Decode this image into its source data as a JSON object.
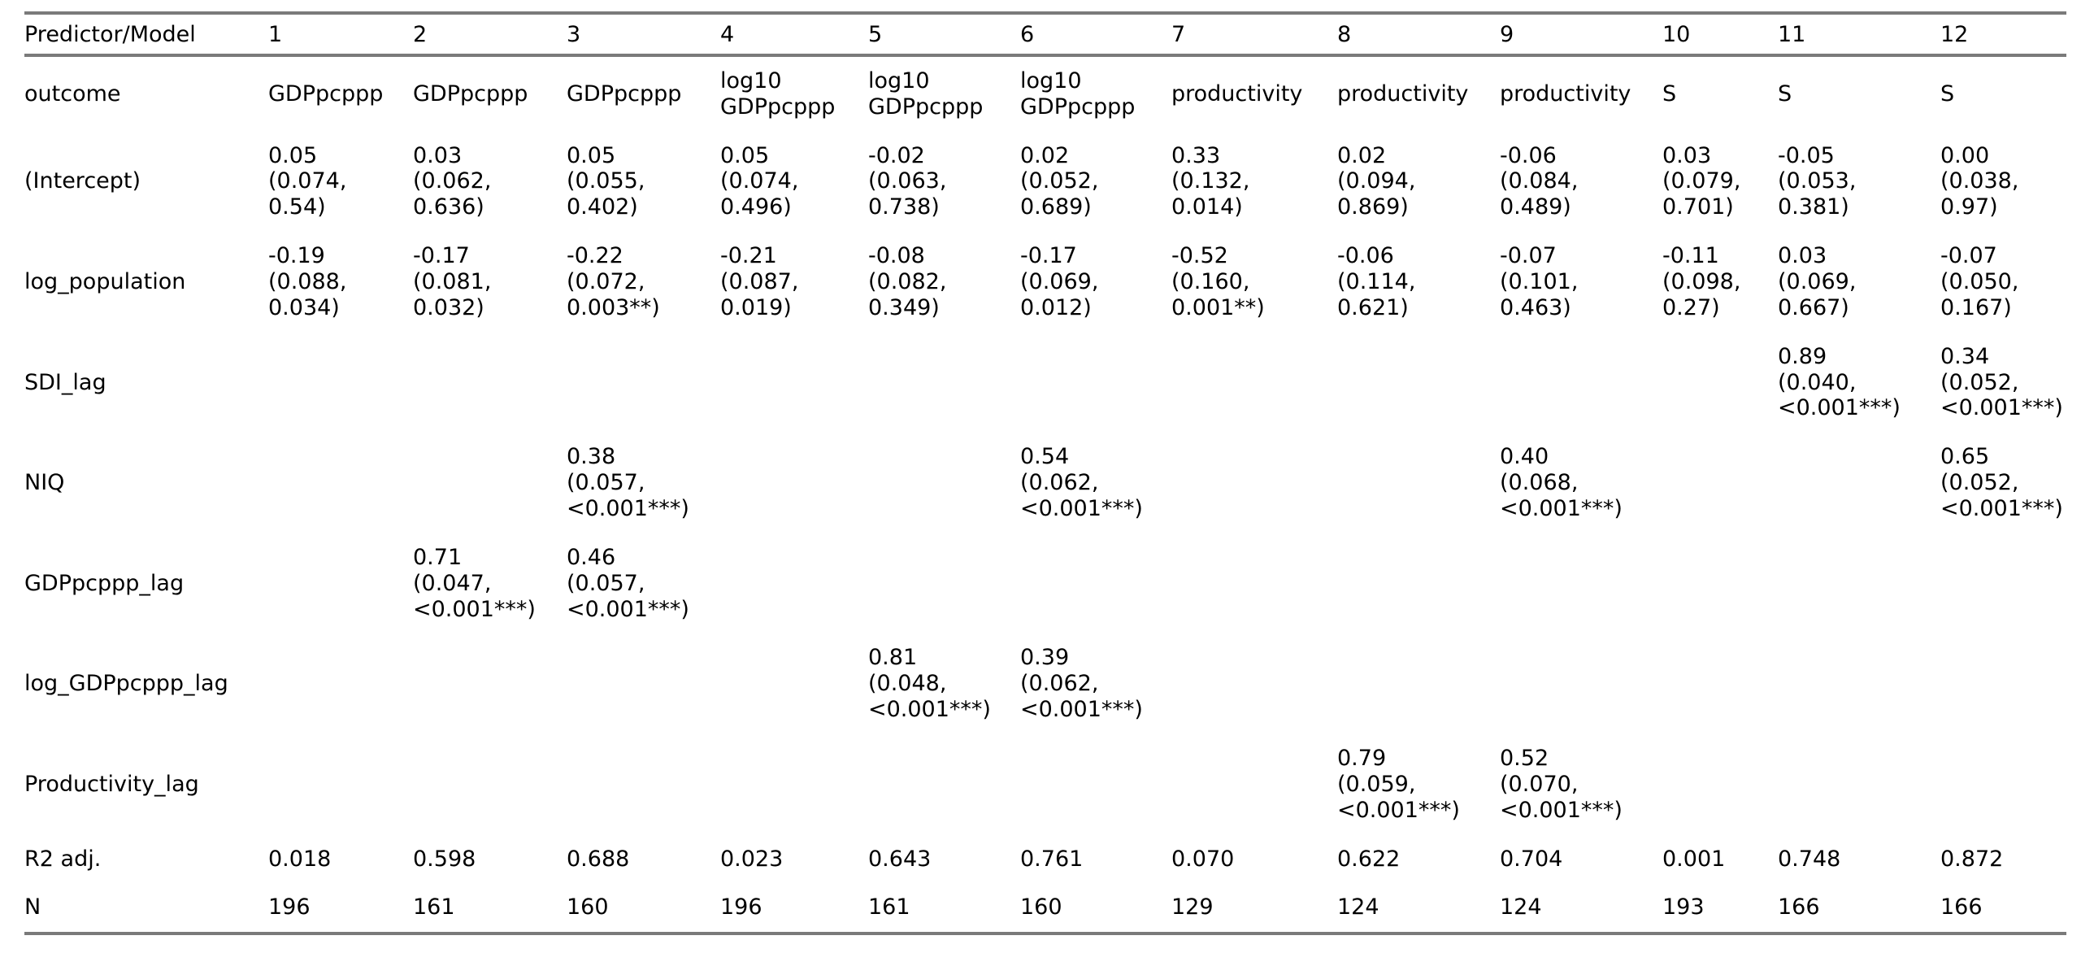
{
  "colors": {
    "background": "#ffffff",
    "text": "#000000",
    "rule": "#7a7a7a"
  },
  "table": {
    "header": [
      "Predictor/Model",
      "1",
      "2",
      "3",
      "4",
      "5",
      "6",
      "7",
      "8",
      "9",
      "10",
      "11",
      "12"
    ],
    "rows": [
      {
        "label": "outcome",
        "cells": [
          "GDPpcppp",
          "GDPpcppp",
          "GDPpcppp",
          "log10\nGDPpcppp",
          "log10\nGDPpcppp",
          "log10\nGDPpcppp",
          "productivity",
          "productivity",
          "productivity",
          "S",
          "S",
          "S"
        ]
      },
      {
        "label": "(Intercept)",
        "cells": [
          "0.05\n(0.074,\n0.54)",
          "0.03\n(0.062,\n0.636)",
          "0.05\n(0.055,\n0.402)",
          "0.05\n(0.074,\n0.496)",
          "-0.02\n(0.063,\n0.738)",
          "0.02\n(0.052,\n0.689)",
          "0.33\n(0.132,\n0.014)",
          "0.02\n(0.094,\n0.869)",
          "-0.06\n(0.084,\n0.489)",
          "0.03\n(0.079,\n0.701)",
          "-0.05\n(0.053,\n0.381)",
          "0.00\n(0.038,\n0.97)"
        ]
      },
      {
        "label": "log_population",
        "cells": [
          "-0.19\n(0.088,\n0.034)",
          "-0.17\n(0.081,\n0.032)",
          "-0.22\n(0.072,\n0.003**)",
          "-0.21\n(0.087,\n0.019)",
          "-0.08\n(0.082,\n0.349)",
          "-0.17\n(0.069,\n0.012)",
          "-0.52\n(0.160,\n0.001**)",
          "-0.06\n(0.114,\n0.621)",
          "-0.07\n(0.101,\n0.463)",
          "-0.11\n(0.098,\n0.27)",
          "0.03\n(0.069,\n0.667)",
          "-0.07\n(0.050,\n0.167)"
        ]
      },
      {
        "label": "SDI_lag",
        "cells": [
          "",
          "",
          "",
          "",
          "",
          "",
          "",
          "",
          "",
          "",
          "0.89\n(0.040,\n<0.001***)",
          "0.34\n(0.052,\n<0.001***)"
        ]
      },
      {
        "label": "NIQ",
        "cells": [
          "",
          "",
          "0.38\n(0.057,\n<0.001***)",
          "",
          "",
          "0.54\n(0.062,\n<0.001***)",
          "",
          "",
          "0.40\n(0.068,\n<0.001***)",
          "",
          "",
          "0.65\n(0.052,\n<0.001***)"
        ]
      },
      {
        "label": "GDPpcppp_lag",
        "cells": [
          "",
          "0.71\n(0.047,\n<0.001***)",
          "0.46\n(0.057,\n<0.001***)",
          "",
          "",
          "",
          "",
          "",
          "",
          "",
          "",
          ""
        ]
      },
      {
        "label": "log_GDPpcppp_lag",
        "cells": [
          "",
          "",
          "",
          "",
          "0.81\n(0.048,\n<0.001***)",
          "0.39\n(0.062,\n<0.001***)",
          "",
          "",
          "",
          "",
          "",
          ""
        ]
      },
      {
        "label": "Productivity_lag",
        "cells": [
          "",
          "",
          "",
          "",
          "",
          "",
          "",
          "0.79\n(0.059,\n<0.001***)",
          "0.52\n(0.070,\n<0.001***)",
          "",
          "",
          ""
        ]
      },
      {
        "label": "R2 adj.",
        "cells": [
          "0.018",
          "0.598",
          "0.688",
          "0.023",
          "0.643",
          "0.761",
          "0.070",
          "0.622",
          "0.704",
          "0.001",
          "0.748",
          "0.872"
        ]
      },
      {
        "label": "N",
        "cells": [
          "196",
          "161",
          "160",
          "196",
          "161",
          "160",
          "129",
          "124",
          "124",
          "193",
          "166",
          "166"
        ]
      }
    ]
  }
}
